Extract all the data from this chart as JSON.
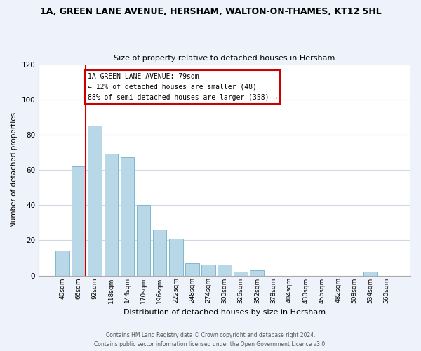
{
  "title": "1A, GREEN LANE AVENUE, HERSHAM, WALTON-ON-THAMES, KT12 5HL",
  "subtitle": "Size of property relative to detached houses in Hersham",
  "xlabel": "Distribution of detached houses by size in Hersham",
  "ylabel": "Number of detached properties",
  "bar_labels": [
    "40sqm",
    "66sqm",
    "92sqm",
    "118sqm",
    "144sqm",
    "170sqm",
    "196sqm",
    "222sqm",
    "248sqm",
    "274sqm",
    "300sqm",
    "326sqm",
    "352sqm",
    "378sqm",
    "404sqm",
    "430sqm",
    "456sqm",
    "482sqm",
    "508sqm",
    "534sqm",
    "560sqm"
  ],
  "bar_values": [
    14,
    62,
    85,
    69,
    67,
    40,
    26,
    21,
    7,
    6,
    6,
    2,
    3,
    0,
    0,
    0,
    0,
    0,
    0,
    2,
    0
  ],
  "bar_color": "#b8d8e8",
  "bar_edge_color": "#7fb8d0",
  "ylim": [
    0,
    120
  ],
  "yticks": [
    0,
    20,
    40,
    60,
    80,
    100,
    120
  ],
  "red_line_x": 1.42,
  "property_line_label": "1A GREEN LANE AVENUE: 79sqm",
  "annotation_line1": "← 12% of detached houses are smaller (48)",
  "annotation_line2": "88% of semi-detached houses are larger (358) →",
  "footer_line1": "Contains HM Land Registry data © Crown copyright and database right 2024.",
  "footer_line2": "Contains public sector information licensed under the Open Government Licence v3.0.",
  "background_color": "#eef2fa",
  "plot_bg_color": "#ffffff",
  "grid_color": "#d0d8e8",
  "annotation_box_color": "#ffffff",
  "annotation_box_edge_color": "#cc0000",
  "red_line_color": "#cc0000"
}
